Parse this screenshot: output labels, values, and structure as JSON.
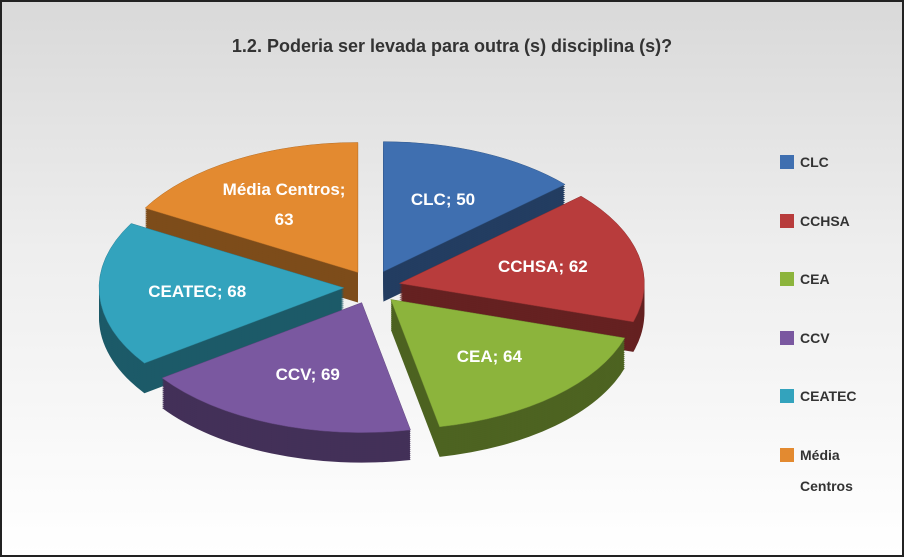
{
  "chart_data": {
    "type": "pie",
    "title": "1.2.  Poderia ser levada para outra (s) disciplina (s)?",
    "categories": [
      "CLC",
      "CCHSA",
      "CEA",
      "CCV",
      "CEATEC",
      "Média Centros"
    ],
    "values": [
      50,
      62,
      64,
      69,
      68,
      63
    ],
    "value_labels": [
      "CLC; 50",
      "CCHSA; 62",
      "CEA; 64",
      "CCV; 69",
      "CEATEC; 68",
      "Média Centros; 63"
    ],
    "colors": [
      "#3f6fb0",
      "#b83c3c",
      "#8cb43c",
      "#7a58a0",
      "#33a3bd",
      "#e38a30"
    ],
    "legend": "right"
  }
}
